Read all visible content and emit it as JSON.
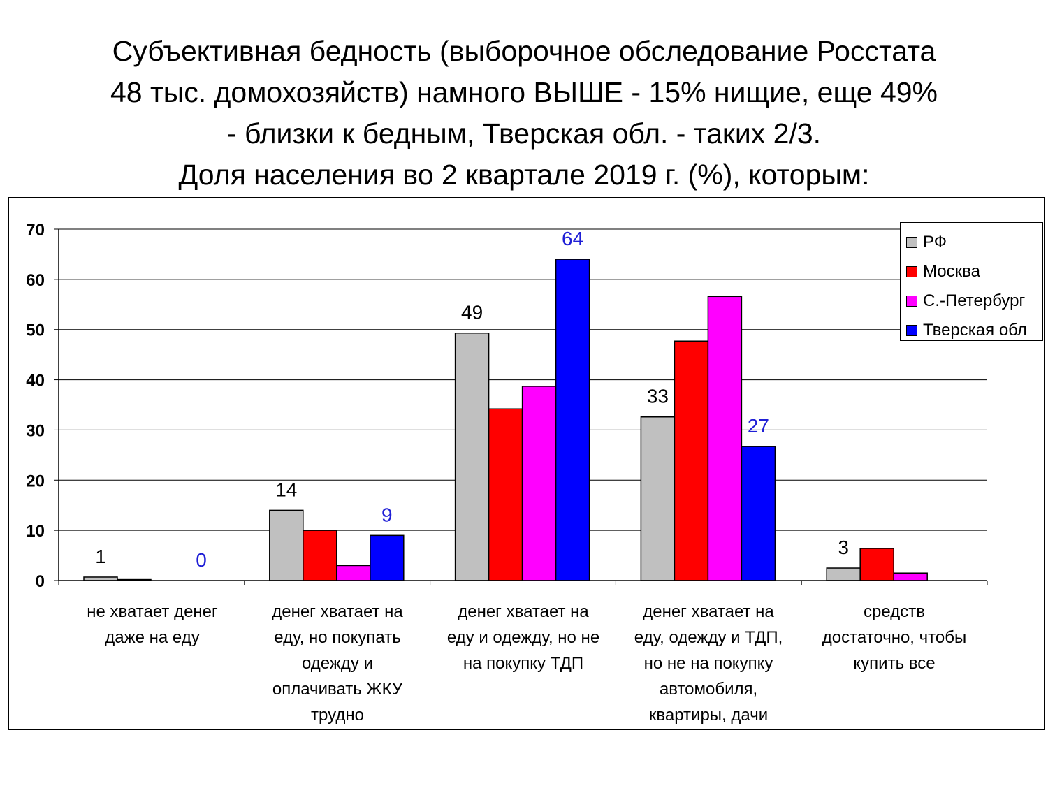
{
  "title_lines": [
    "Субъективная бедность (выборочное обследование Росстата",
    "48 тыс. домохозяйств) намного ВЫШЕ - 15% нищие, еще 49%",
    "- близки к бедным, Тверская обл. - таких 2/3.",
    "Доля населения во 2 квартале 2019 г. (%), которым:"
  ],
  "chart_data": {
    "type": "bar",
    "title": "Доля населения во 2 квартале 2019 г. (%), которым:",
    "categories": [
      "не хватает денег даже на еду",
      "денег хватает на еду, но покупать одежду и оплачивать ЖКУ трудно",
      "денег хватает на еду и одежду, но не на покупку ТДП",
      "денег хватает на еду, одежду и ТДП, но не на покупку автомобиля, квартиры, дачи",
      "средств достаточно, чтобы купить все"
    ],
    "category_lines": [
      [
        "не хватает денег",
        "даже на еду"
      ],
      [
        "денег хватает на",
        "еду, но покупать",
        "одежду и",
        "оплачивать ЖКУ",
        "трудно"
      ],
      [
        "денег хватает на",
        "еду и одежду, но не",
        "на покупку ТДП"
      ],
      [
        "денег хватает на",
        "еду, одежду и  ТДП,",
        "но не на покупку",
        "автомобиля,",
        "квартиры, дачи"
      ],
      [
        "средств",
        "достаточно, чтобы",
        "купить все"
      ]
    ],
    "series": [
      {
        "name": "РФ",
        "color": "#c0c0c0",
        "values": [
          0.7,
          14.0,
          49.3,
          32.6,
          2.5
        ],
        "labels": [
          "1",
          "14",
          "49",
          "33",
          "3"
        ],
        "label_color": "#000000"
      },
      {
        "name": "Москва",
        "color": "#ff0000",
        "values": [
          0.2,
          10.0,
          34.2,
          47.7,
          6.4
        ],
        "labels": [],
        "label_color": "#000000"
      },
      {
        "name": "С.-Петербург",
        "color": "#ff00ff",
        "values": [
          0,
          3.0,
          38.7,
          56.6,
          1.5
        ],
        "labels": [],
        "label_color": "#000000"
      },
      {
        "name": "Тверская обл",
        "color": "#0000ff",
        "values": [
          0,
          9.0,
          64.0,
          26.7,
          0
        ],
        "labels": [
          "0",
          "9",
          "64",
          "27",
          ""
        ],
        "label_color": "#1f1fd6"
      }
    ],
    "ylim": [
      0,
      70
    ],
    "yticks": [
      "0",
      "10",
      "20",
      "30",
      "40",
      "50",
      "60",
      "70"
    ],
    "grid": true,
    "legend_position": "top-right"
  }
}
